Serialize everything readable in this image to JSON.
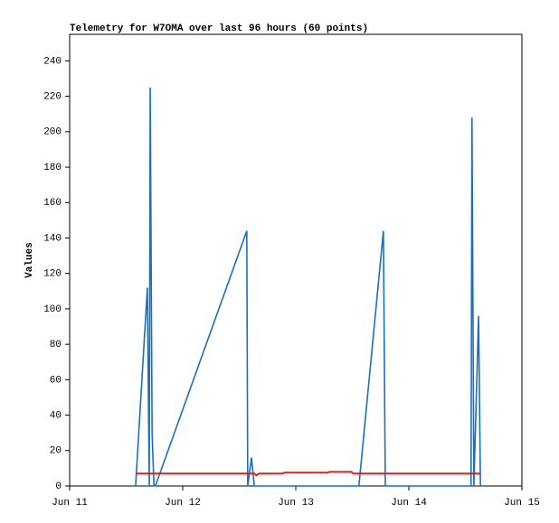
{
  "chart_data": {
    "type": "line",
    "title": "Telemetry for W7OMA over last 96 hours (60 points)",
    "y_label": "Values",
    "xlim": [
      0,
      96
    ],
    "xticks": [
      {
        "value": 0,
        "label": "Jun 11"
      },
      {
        "value": 24,
        "label": "Jun 12"
      },
      {
        "value": 48,
        "label": "Jun 13"
      },
      {
        "value": 72,
        "label": "Jun 14"
      },
      {
        "value": 96,
        "label": "Jun 15"
      }
    ],
    "ylim": [
      0,
      255
    ],
    "yticks": [
      0,
      20,
      40,
      60,
      80,
      100,
      120,
      140,
      160,
      180,
      200,
      220,
      240
    ],
    "series": [
      {
        "color": "#1a6fc0",
        "x": [
          14.0,
          16.5,
          16.9,
          17.1,
          17.5,
          17.9,
          18.2,
          37.6,
          37.8,
          38.6,
          39.2,
          61.4,
          66.6,
          66.8,
          67.0,
          85.2,
          85.3,
          85.4,
          85.8,
          86.8,
          87.0,
          87.2
        ],
        "values": [
          0,
          112,
          0,
          225,
          30,
          0,
          0,
          144,
          0,
          16,
          0,
          0,
          144,
          72,
          0,
          0,
          104,
          208,
          0,
          96,
          48,
          0
        ]
      },
      {
        "color": "#e0201c",
        "x": [
          14.0,
          39.2,
          39.6,
          40.2,
          45.2,
          45.6,
          54.8,
          55.2,
          59.8,
          60.2,
          87.2
        ],
        "values": [
          7,
          7,
          6,
          7,
          7,
          7.5,
          7.5,
          8,
          8,
          7,
          7
        ]
      }
    ]
  }
}
